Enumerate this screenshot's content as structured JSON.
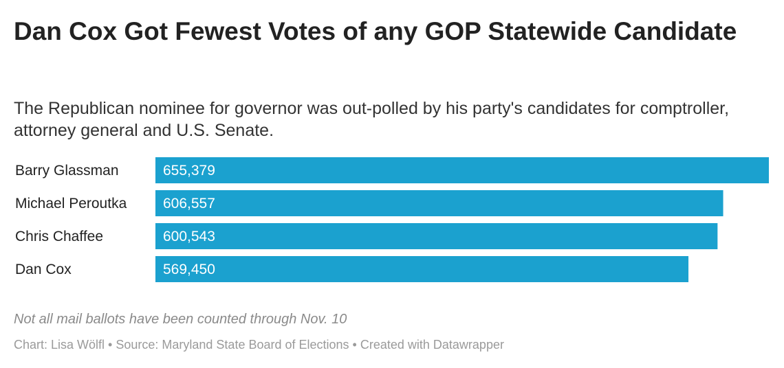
{
  "title": "Dan Cox Got Fewest Votes of any GOP Statewide Candidate",
  "subtitle": "The Republican nominee for governor was out-polled by his party's candidates for comptroller, attorney general and U.S. Senate.",
  "note": "Not all mail ballots have been counted through Nov. 10",
  "footer": {
    "credit": "Chart: Lisa Wölfl",
    "separator_1": " • ",
    "source": "Source: Maryland State Board of Elections",
    "separator_2": " • ",
    "tool": "Created with Datawrapper"
  },
  "colors": {
    "bar": "#1ba1cf",
    "bar_label": "#ffffff",
    "category_label": "#222222"
  },
  "chart_data": {
    "type": "bar",
    "orientation": "horizontal",
    "categories": [
      "Barry Glassman",
      "Michael Peroutka",
      "Chris Chaffee",
      "Dan Cox"
    ],
    "values": [
      655379,
      606557,
      600543,
      569450
    ],
    "value_labels": [
      "655,379",
      "606,557",
      "600,543",
      "569,450"
    ],
    "xlim": [
      0,
      655379
    ],
    "grid": false,
    "legend": "none"
  }
}
